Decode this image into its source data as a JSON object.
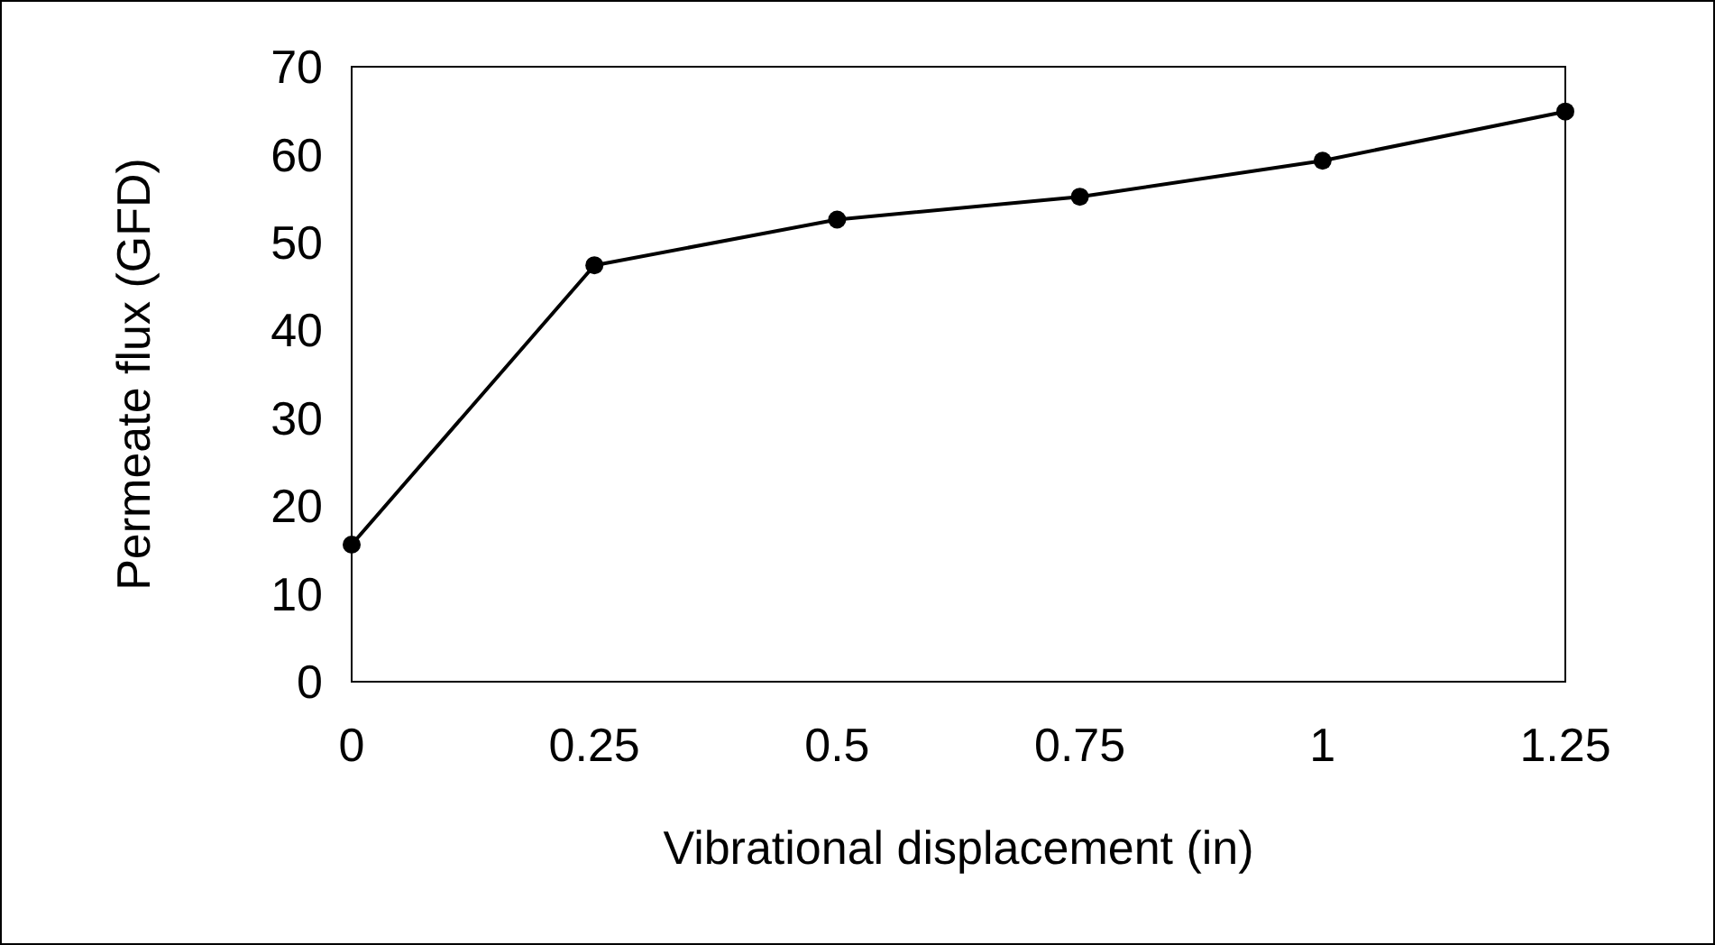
{
  "chart_data": {
    "type": "line",
    "xlabel": "Vibrational displacement (in)",
    "ylabel": "Permeate flux (GFD)",
    "x": [
      0,
      0.25,
      0.5,
      0.75,
      1,
      1.25
    ],
    "series": [
      {
        "color": "#000000",
        "values": [
          15.6,
          47.4,
          52.6,
          55.2,
          59.3,
          64.9
        ]
      }
    ],
    "xlim": [
      0,
      1.25
    ],
    "xticks": [
      0,
      0.25,
      0.5,
      0.75,
      1,
      1.25
    ],
    "ylim": [
      0,
      70
    ],
    "yticks": [
      0,
      10,
      20,
      30,
      40,
      50,
      60,
      70
    ],
    "grid": false,
    "marker": "circle",
    "line_style": "solid"
  }
}
